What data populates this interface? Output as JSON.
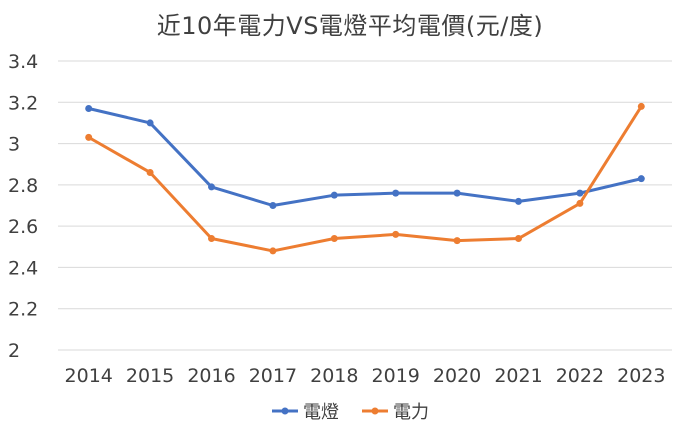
{
  "chart_data": {
    "type": "line",
    "title": "近10年電力VS電燈平均電價(元/度)",
    "xlabel": "",
    "ylabel": "",
    "categories": [
      "2014",
      "2015",
      "2016",
      "2017",
      "2018",
      "2019",
      "2020",
      "2021",
      "2022",
      "2023"
    ],
    "ylim": [
      2,
      3.4
    ],
    "yticks": [
      "2",
      "2.2",
      "2.4",
      "2.6",
      "2.8",
      "3",
      "3.2",
      "3.4"
    ],
    "grid": "horizontal",
    "legend": "bottom",
    "series": [
      {
        "name": "電燈",
        "color": "#4472C4",
        "values": [
          3.17,
          3.1,
          2.79,
          2.7,
          2.75,
          2.76,
          2.76,
          2.72,
          2.76,
          2.83
        ]
      },
      {
        "name": "電力",
        "color": "#ED7D31",
        "values": [
          3.03,
          2.86,
          2.54,
          2.48,
          2.54,
          2.56,
          2.53,
          2.54,
          2.71,
          3.18
        ]
      }
    ]
  }
}
